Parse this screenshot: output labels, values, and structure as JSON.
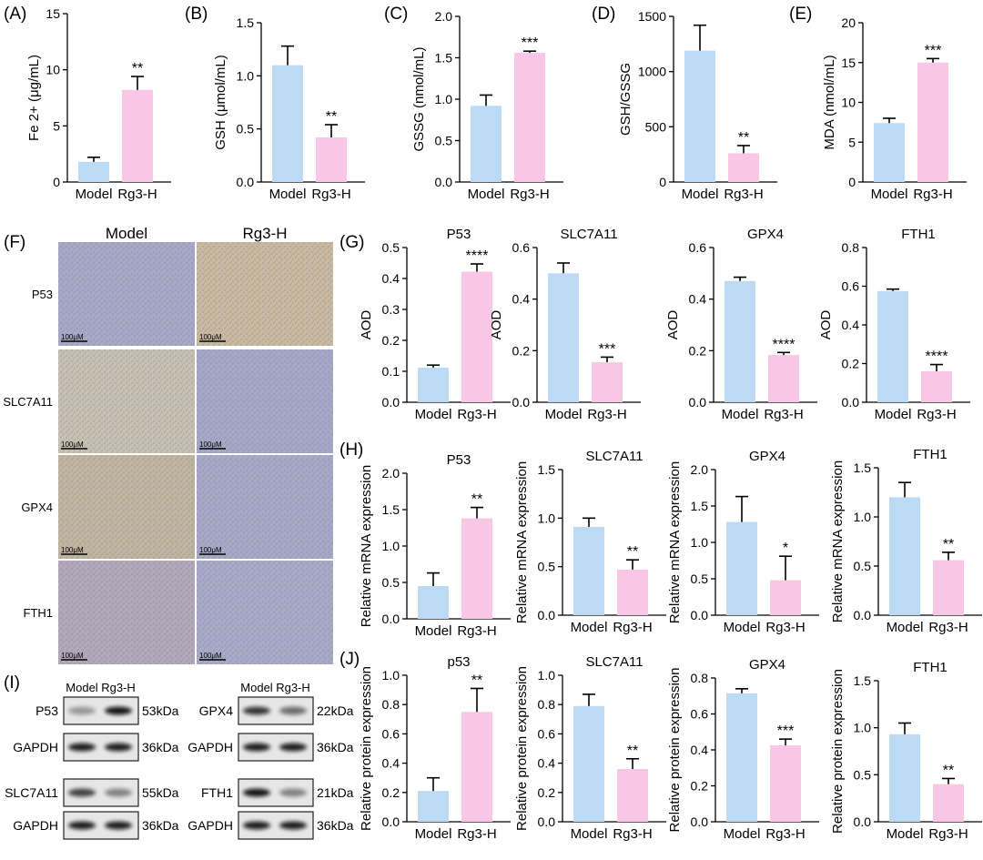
{
  "colors": {
    "model": "#bcdaf4",
    "rg3h": "#f8c7e6"
  },
  "groups": [
    "Model",
    "Rg3-H"
  ],
  "chart_data": [
    {
      "id": "A",
      "letter": "(A)",
      "type": "bar",
      "title": "",
      "ylabel": "Fe 2+ (μg/mL)",
      "ylim": [
        0,
        15
      ],
      "ticks": [
        0,
        5,
        10,
        15
      ],
      "categories": [
        "Model",
        "Rg3-H"
      ],
      "values": [
        1.8,
        8.2
      ],
      "errors": [
        0.4,
        1.2
      ],
      "sig": [
        "",
        "**"
      ]
    },
    {
      "id": "B",
      "letter": "(B)",
      "type": "bar",
      "title": "",
      "ylabel": "GSH (μmol/mL)",
      "ylim": [
        0,
        1.5
      ],
      "ticks": [
        "0.0",
        "0.5",
        "1.0",
        "1.5"
      ],
      "categories": [
        "Model",
        "Rg3-H"
      ],
      "values": [
        1.1,
        0.42
      ],
      "errors": [
        0.18,
        0.12
      ],
      "sig": [
        "",
        "**"
      ]
    },
    {
      "id": "C",
      "letter": "(C)",
      "type": "bar",
      "title": "",
      "ylabel": "GSSG (nmol/mL)",
      "ylim": [
        0,
        2.0
      ],
      "ticks": [
        "0.0",
        "0.5",
        "1.0",
        "1.5",
        "2.0"
      ],
      "categories": [
        "Model",
        "Rg3-H"
      ],
      "values": [
        0.92,
        1.56
      ],
      "errors": [
        0.13,
        0.02
      ],
      "sig": [
        "",
        "***"
      ]
    },
    {
      "id": "D",
      "letter": "(D)",
      "type": "bar",
      "title": "",
      "ylabel": "GSH/GSSG",
      "ylim": [
        0,
        1500
      ],
      "ticks": [
        0,
        500,
        1000,
        1500
      ],
      "categories": [
        "Model",
        "Rg3-H"
      ],
      "values": [
        1190,
        260
      ],
      "errors": [
        230,
        70
      ],
      "sig": [
        "",
        "**"
      ]
    },
    {
      "id": "E",
      "letter": "(E)",
      "type": "bar",
      "title": "",
      "ylabel": "MDA (nmol/mL)",
      "ylim": [
        0,
        20
      ],
      "ticks": [
        0,
        5,
        10,
        15,
        20
      ],
      "categories": [
        "Model",
        "Rg3-H"
      ],
      "values": [
        7.4,
        15.0
      ],
      "errors": [
        0.6,
        0.5
      ],
      "sig": [
        "",
        "***"
      ]
    },
    {
      "id": "G1",
      "letter": "(G)",
      "type": "bar",
      "title": "P53",
      "ylabel": "AOD",
      "ylim": [
        0,
        0.5
      ],
      "ticks": [
        "0.0",
        "0.1",
        "0.2",
        "0.3",
        "0.4",
        "0.5"
      ],
      "categories": [
        "Model",
        "Rg3-H"
      ],
      "values": [
        0.112,
        0.422
      ],
      "errors": [
        0.008,
        0.025
      ],
      "sig": [
        "",
        "****"
      ]
    },
    {
      "id": "G2",
      "letter": "",
      "type": "bar",
      "title": "SLC7A11",
      "ylabel": "AOD",
      "ylim": [
        0,
        0.6
      ],
      "ticks": [
        "0.0",
        "0.2",
        "0.4",
        "0.6"
      ],
      "categories": [
        "Model",
        "Rg3-H"
      ],
      "values": [
        0.5,
        0.155
      ],
      "errors": [
        0.04,
        0.02
      ],
      "sig": [
        "",
        "***"
      ]
    },
    {
      "id": "G3",
      "letter": "",
      "type": "bar",
      "title": "GPX4",
      "ylabel": "AOD",
      "ylim": [
        0,
        0.6
      ],
      "ticks": [
        "0.0",
        "0.2",
        "0.4",
        "0.6"
      ],
      "categories": [
        "Model",
        "Rg3-H"
      ],
      "values": [
        0.47,
        0.183
      ],
      "errors": [
        0.015,
        0.01
      ],
      "sig": [
        "",
        "****"
      ]
    },
    {
      "id": "G4",
      "letter": "",
      "type": "bar",
      "title": "FTH1",
      "ylabel": "AOD",
      "ylim": [
        0,
        0.8
      ],
      "ticks": [
        "0.0",
        "0.2",
        "0.4",
        "0.6",
        "0.8"
      ],
      "categories": [
        "Model",
        "Rg3-H"
      ],
      "values": [
        0.575,
        0.16
      ],
      "errors": [
        0.01,
        0.035
      ],
      "sig": [
        "",
        "****"
      ]
    },
    {
      "id": "H1",
      "letter": "(H)",
      "type": "bar",
      "title": "P53",
      "ylabel": "Relative mRNA expression",
      "ylim": [
        0,
        2.0
      ],
      "ticks": [
        "0.0",
        "0.5",
        "1.0",
        "1.5",
        "2.0"
      ],
      "categories": [
        "Model",
        "Rg3-H"
      ],
      "values": [
        0.45,
        1.38
      ],
      "errors": [
        0.18,
        0.15
      ],
      "sig": [
        "",
        "**"
      ]
    },
    {
      "id": "H2",
      "letter": "",
      "type": "bar",
      "title": "SLC7A11",
      "ylabel": "Relative mRNA expression",
      "ylim": [
        0,
        1.5
      ],
      "ticks": [
        "0.0",
        "0.5",
        "1.0",
        "1.5"
      ],
      "categories": [
        "Model",
        "Rg3-H"
      ],
      "values": [
        0.91,
        0.47
      ],
      "errors": [
        0.09,
        0.1
      ],
      "sig": [
        "",
        "**"
      ]
    },
    {
      "id": "H3",
      "letter": "",
      "type": "bar",
      "title": "GPX4",
      "ylabel": "Relative mRNA expression",
      "ylim": [
        0,
        2.0
      ],
      "ticks": [
        "0.0",
        "0.5",
        "1.0",
        "1.5",
        "2.0"
      ],
      "categories": [
        "Model",
        "Rg3-H"
      ],
      "values": [
        1.28,
        0.48
      ],
      "errors": [
        0.35,
        0.33
      ],
      "sig": [
        "",
        "*"
      ]
    },
    {
      "id": "H4",
      "letter": "",
      "type": "bar",
      "title": "FTH1",
      "ylabel": "Relative mRNA expression",
      "ylim": [
        0,
        1.5
      ],
      "ticks": [
        "0.0",
        "0.5",
        "1.0",
        "1.5"
      ],
      "categories": [
        "Model",
        "Rg3-H"
      ],
      "values": [
        1.2,
        0.56
      ],
      "errors": [
        0.15,
        0.08
      ],
      "sig": [
        "",
        "**"
      ]
    },
    {
      "id": "J1",
      "letter": "(J)",
      "type": "bar",
      "title": "p53",
      "ylabel": "Relative protein expression",
      "ylim": [
        0,
        1.0
      ],
      "ticks": [
        "0.0",
        "0.2",
        "0.4",
        "0.6",
        "0.8",
        "1.0"
      ],
      "categories": [
        "Model",
        "Rg3-H"
      ],
      "values": [
        0.21,
        0.75
      ],
      "errors": [
        0.09,
        0.16
      ],
      "sig": [
        "",
        "**"
      ]
    },
    {
      "id": "J2",
      "letter": "",
      "type": "bar",
      "title": "SLC7A11",
      "ylabel": "Relative protein expression",
      "ylim": [
        0,
        1.0
      ],
      "ticks": [
        "0.0",
        "0.2",
        "0.4",
        "0.6",
        "0.8",
        "1.0"
      ],
      "categories": [
        "Model",
        "Rg3-H"
      ],
      "values": [
        0.79,
        0.36
      ],
      "errors": [
        0.08,
        0.07
      ],
      "sig": [
        "",
        "**"
      ]
    },
    {
      "id": "J3",
      "letter": "",
      "type": "bar",
      "title": "GPX4",
      "ylabel": "Relative protein expression",
      "ylim": [
        0,
        0.8
      ],
      "ticks": [
        "0.0",
        "0.2",
        "0.4",
        "0.6",
        "0.8"
      ],
      "categories": [
        "Model",
        "Rg3-H"
      ],
      "values": [
        0.715,
        0.425
      ],
      "errors": [
        0.025,
        0.035
      ],
      "sig": [
        "",
        "***"
      ]
    },
    {
      "id": "J4",
      "letter": "",
      "type": "bar",
      "title": "FTH1",
      "ylabel": "Relative protein expression",
      "ylim": [
        0,
        1.5
      ],
      "ticks": [
        "0.0",
        "0.5",
        "1.0",
        "1.5"
      ],
      "categories": [
        "Model",
        "Rg3-H"
      ],
      "values": [
        0.93,
        0.4
      ],
      "errors": [
        0.12,
        0.06
      ],
      "sig": [
        "",
        "**"
      ]
    }
  ],
  "ihc": {
    "letter": "(F)",
    "cols": [
      "Model",
      "Rg3-H"
    ],
    "rows": [
      "P53",
      "SLC7A11",
      "GPX4",
      "FTH1"
    ],
    "scale_bar": "100μM"
  },
  "western": {
    "letter": "(I)",
    "header_model": "Model",
    "header_rg3h": "Rg3-H",
    "blocks": [
      {
        "protein": "P53",
        "protein_kda": "53kDa",
        "loading": "GAPDH",
        "loading_kda": "36kDa"
      },
      {
        "protein": "GPX4",
        "protein_kda": "22kDa",
        "loading": "GAPDH",
        "loading_kda": "36kDa"
      },
      {
        "protein": "SLC7A11",
        "protein_kda": "55kDa",
        "loading": "GAPDH",
        "loading_kda": "36kDa"
      },
      {
        "protein": "FTH1",
        "protein_kda": "21kDa",
        "loading": "GAPDH",
        "loading_kda": "36kDa"
      }
    ]
  }
}
